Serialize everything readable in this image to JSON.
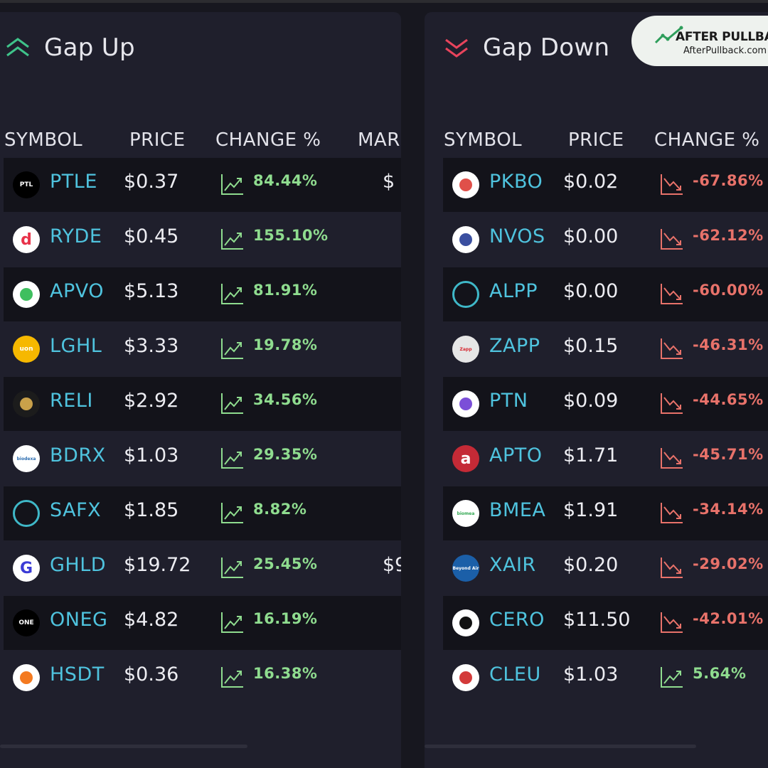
{
  "gap_up": {
    "title": "Gap Up",
    "columns": [
      "SYMBOL",
      "PRICE",
      "CHANGE %",
      "MAR"
    ],
    "rows": [
      {
        "symbol": "PTLE",
        "price": "$0.37",
        "change": "84.44%",
        "market": "$",
        "logo_text": "PTL",
        "logo_bg": "#000000",
        "logo_fg": "#ffffff"
      },
      {
        "symbol": "RYDE",
        "price": "$0.45",
        "change": "155.10%",
        "market": "",
        "logo_text": "d",
        "logo_bg": "#ffffff",
        "logo_fg": "#e8334a"
      },
      {
        "symbol": "APVO",
        "price": "$5.13",
        "change": "81.91%",
        "market": "",
        "logo_text": "",
        "logo_bg": "#ffffff",
        "logo_fg": "#3fbf5f"
      },
      {
        "symbol": "LGHL",
        "price": "$3.33",
        "change": "19.78%",
        "market": "",
        "logo_text": "uon",
        "logo_bg": "#f6b800",
        "logo_fg": "#ffffff"
      },
      {
        "symbol": "RELI",
        "price": "$2.92",
        "change": "34.56%",
        "market": "",
        "logo_text": "",
        "logo_bg": "#1c1c1c",
        "logo_fg": "#c9a14a"
      },
      {
        "symbol": "BDRX",
        "price": "$1.03",
        "change": "29.35%",
        "market": "",
        "logo_text": "biodexa",
        "logo_bg": "#ffffff",
        "logo_fg": "#2b6cb0"
      },
      {
        "symbol": "SAFX",
        "price": "$1.85",
        "change": "8.82%",
        "market": "",
        "logo_text": "",
        "logo_bg": "transparent",
        "logo_fg": "#3fb8c8"
      },
      {
        "symbol": "GHLD",
        "price": "$19.72",
        "change": "25.45%",
        "market": "$9",
        "logo_text": "G",
        "logo_bg": "#ffffff",
        "logo_fg": "#3b3bd6"
      },
      {
        "symbol": "ONEG",
        "price": "$4.82",
        "change": "16.19%",
        "market": "",
        "logo_text": "ONE",
        "logo_bg": "#000000",
        "logo_fg": "#ffffff"
      },
      {
        "symbol": "HSDT",
        "price": "$0.36",
        "change": "16.38%",
        "market": "",
        "logo_text": "",
        "logo_bg": "#ffffff",
        "logo_fg": "#f47a20"
      }
    ]
  },
  "gap_down": {
    "title": "Gap Down",
    "columns": [
      "SYMBOL",
      "PRICE",
      "CHANGE %"
    ],
    "rows": [
      {
        "symbol": "PKBO",
        "price": "$0.02",
        "change": "-67.86%",
        "direction": "down",
        "logo_text": "",
        "logo_bg": "#ffffff",
        "logo_fg": "#e0504a"
      },
      {
        "symbol": "NVOS",
        "price": "$0.00",
        "change": "-62.12%",
        "direction": "down",
        "logo_text": "",
        "logo_bg": "#ffffff",
        "logo_fg": "#3a4fa0"
      },
      {
        "symbol": "ALPP",
        "price": "$0.00",
        "change": "-60.00%",
        "direction": "down",
        "logo_text": "",
        "logo_bg": "transparent",
        "logo_fg": "#3fb8c8"
      },
      {
        "symbol": "ZAPP",
        "price": "$0.15",
        "change": "-46.31%",
        "direction": "down",
        "logo_text": "Zapp",
        "logo_bg": "#e6e6e6",
        "logo_fg": "#d7262f"
      },
      {
        "symbol": "PTN",
        "price": "$0.09",
        "change": "-44.65%",
        "direction": "down",
        "logo_text": "",
        "logo_bg": "#ffffff",
        "logo_fg": "#7b4fd8"
      },
      {
        "symbol": "APTO",
        "price": "$1.71",
        "change": "-45.71%",
        "direction": "down",
        "logo_text": "a",
        "logo_bg": "#c42a36",
        "logo_fg": "#ffffff"
      },
      {
        "symbol": "BMEA",
        "price": "$1.91",
        "change": "-34.14%",
        "direction": "down",
        "logo_text": "biomea",
        "logo_bg": "#ffffff",
        "logo_fg": "#34a853"
      },
      {
        "symbol": "XAIR",
        "price": "$0.20",
        "change": "-29.02%",
        "direction": "down",
        "logo_text": "Beyond Air",
        "logo_bg": "#1b5fa8",
        "logo_fg": "#ffffff"
      },
      {
        "symbol": "CERO",
        "price": "$11.50",
        "change": "-42.01%",
        "direction": "down",
        "logo_text": "",
        "logo_bg": "#ffffff",
        "logo_fg": "#111111"
      },
      {
        "symbol": "CLEU",
        "price": "$1.03",
        "change": "5.64%",
        "direction": "up",
        "logo_text": "",
        "logo_bg": "#ffffff",
        "logo_fg": "#d33a3a"
      }
    ]
  },
  "brand": {
    "name": "AFTER PULLBACK",
    "url": "AfterPullback.com"
  },
  "colors": {
    "up": "#8fdc8f",
    "down": "#e8726a",
    "symbol": "#4fc3de",
    "panel": "#1f1f2c",
    "row_dark": "#13131a"
  }
}
